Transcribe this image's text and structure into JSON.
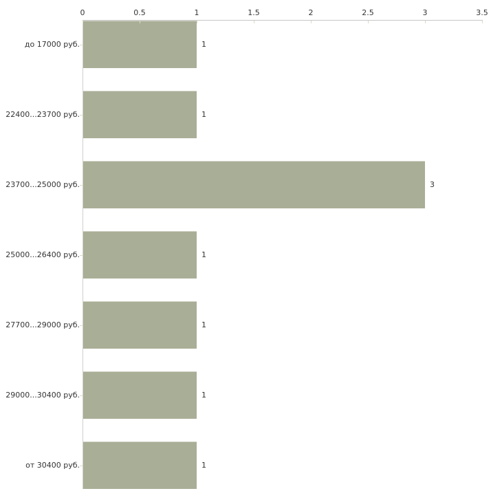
{
  "chart_data": {
    "type": "bar",
    "orientation": "horizontal",
    "categories": [
      "до 17000 руб.",
      "22400...23700 руб.",
      "23700...25000 руб.",
      "25000...26400 руб.",
      "27700...29000 руб.",
      "29000...30400 руб.",
      "от 30400 руб."
    ],
    "values": [
      1,
      1,
      3,
      1,
      1,
      1,
      1
    ],
    "value_labels": [
      "1",
      "1",
      "3",
      "1",
      "1",
      "1",
      "1"
    ],
    "x_ticks": [
      0,
      0.5,
      1,
      1.5,
      2,
      2.5,
      3,
      3.5
    ],
    "x_tick_labels": [
      "0",
      "0.5",
      "1",
      "1.5",
      "2",
      "2.5",
      "3",
      "3.5"
    ],
    "xlim": [
      0,
      3.5
    ],
    "axis_position": "top",
    "grid": false,
    "legend": "none",
    "colors": {
      "bar": "#a9ae96",
      "axis_line": "#c6c6c6",
      "y_axis_line": "#cfcfcf",
      "tick_mark": "#d8dbc6",
      "text": "#333333",
      "background": "#ffffff"
    }
  }
}
